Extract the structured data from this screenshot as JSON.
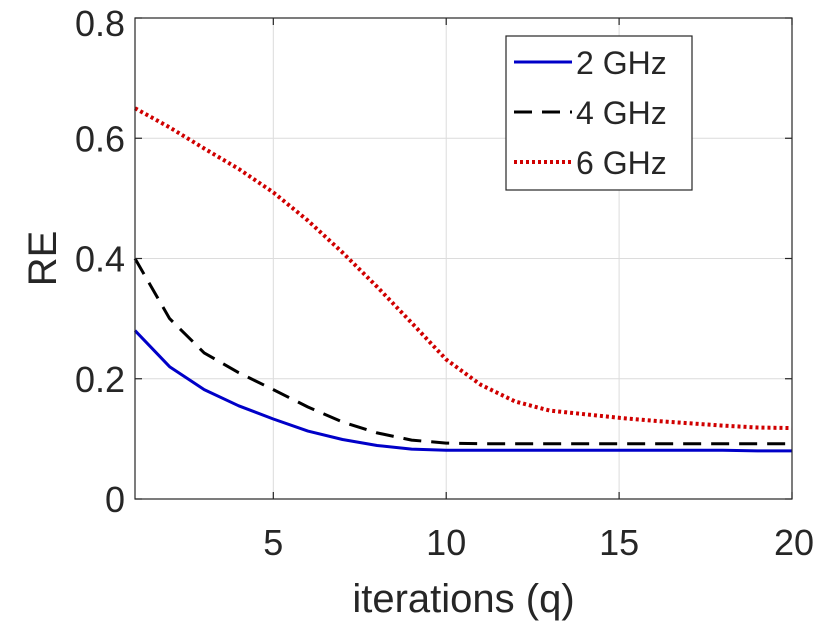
{
  "chart_data": {
    "type": "line",
    "title": "",
    "xlabel": "iterations (q)",
    "ylabel": "RE",
    "xlim": [
      1,
      20
    ],
    "ylim": [
      0,
      0.8
    ],
    "xticks": [
      5,
      10,
      15,
      20
    ],
    "yticks": [
      0,
      0.2,
      0.4,
      0.6,
      0.8
    ],
    "xtick_labels": [
      "5",
      "10",
      "15",
      "20"
    ],
    "ytick_labels": [
      "0",
      "0.2",
      "0.4",
      "0.6",
      "0.8"
    ],
    "grid": true,
    "legend_position": "top-right",
    "x": [
      1,
      2,
      3,
      4,
      5,
      6,
      7,
      8,
      9,
      10,
      11,
      12,
      13,
      14,
      15,
      16,
      17,
      18,
      19,
      20
    ],
    "series": [
      {
        "name": "2 GHz",
        "color": "#0000C8",
        "style": "solid",
        "values": [
          0.28,
          0.22,
          0.182,
          0.155,
          0.133,
          0.113,
          0.099,
          0.089,
          0.083,
          0.081,
          0.081,
          0.081,
          0.081,
          0.081,
          0.081,
          0.081,
          0.081,
          0.081,
          0.08,
          0.08
        ]
      },
      {
        "name": "4 GHz",
        "color": "#000000",
        "style": "dashed",
        "values": [
          0.4,
          0.3,
          0.243,
          0.21,
          0.182,
          0.153,
          0.128,
          0.11,
          0.098,
          0.093,
          0.092,
          0.092,
          0.092,
          0.092,
          0.092,
          0.092,
          0.092,
          0.092,
          0.092,
          0.092
        ]
      },
      {
        "name": "6 GHz",
        "color": "#D00000",
        "style": "dotted",
        "values": [
          0.65,
          0.618,
          0.583,
          0.549,
          0.51,
          0.463,
          0.41,
          0.353,
          0.293,
          0.232,
          0.19,
          0.162,
          0.147,
          0.141,
          0.135,
          0.13,
          0.126,
          0.122,
          0.119,
          0.118
        ]
      }
    ]
  }
}
